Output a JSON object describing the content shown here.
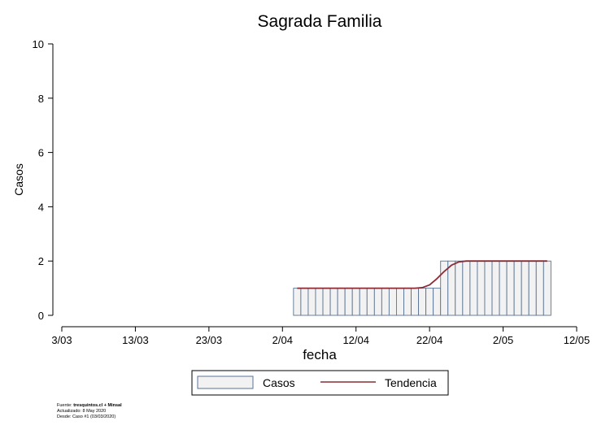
{
  "chart_data": {
    "type": "bar",
    "title": "Sagrada Familia",
    "xlabel": "fecha",
    "ylabel": "Casos",
    "ylim": [
      0,
      10
    ],
    "yticks": [
      0,
      2,
      4,
      6,
      8,
      10
    ],
    "xlim": [
      "2020-03-03",
      "2020-05-12"
    ],
    "xticks": [
      "3/03",
      "13/03",
      "23/03",
      "2/04",
      "12/04",
      "22/04",
      "2/05",
      "12/05"
    ],
    "grid": false,
    "legend_position": "bottom",
    "dates": [
      "2020-04-04",
      "2020-04-05",
      "2020-04-06",
      "2020-04-07",
      "2020-04-08",
      "2020-04-09",
      "2020-04-10",
      "2020-04-11",
      "2020-04-12",
      "2020-04-13",
      "2020-04-14",
      "2020-04-15",
      "2020-04-16",
      "2020-04-17",
      "2020-04-18",
      "2020-04-19",
      "2020-04-20",
      "2020-04-21",
      "2020-04-22",
      "2020-04-23",
      "2020-04-24",
      "2020-04-25",
      "2020-04-26",
      "2020-04-27",
      "2020-04-28",
      "2020-04-29",
      "2020-04-30",
      "2020-05-01",
      "2020-05-02",
      "2020-05-03",
      "2020-05-04",
      "2020-05-05",
      "2020-05-06",
      "2020-05-07",
      "2020-05-08"
    ],
    "series": [
      {
        "name": "Casos",
        "kind": "bar",
        "values": [
          1,
          1,
          1,
          1,
          1,
          1,
          1,
          1,
          1,
          1,
          1,
          1,
          1,
          1,
          1,
          1,
          1,
          1,
          1,
          1,
          2,
          2,
          2,
          2,
          2,
          2,
          2,
          2,
          2,
          2,
          2,
          2,
          2,
          2,
          2
        ]
      },
      {
        "name": "Tendencia",
        "kind": "line",
        "values": [
          1,
          1,
          1,
          1,
          1,
          1,
          1,
          1,
          1,
          1,
          1,
          1,
          1,
          1,
          1,
          1,
          1,
          1.02,
          1.12,
          1.35,
          1.62,
          1.85,
          1.97,
          2,
          2,
          2,
          2,
          2,
          2,
          2,
          2,
          2,
          2,
          2,
          2
        ]
      }
    ],
    "colors": {
      "bar_fill": "#f2f2f2",
      "bar_stroke": "#5a7394",
      "trend": "#8b2b35"
    }
  },
  "footer": {
    "source_label": "Fuente: ",
    "source_value": "tresquintos.cl + Minsal",
    "updated": "Actualizado: 8 May 2020",
    "since": "Desde: Caso #1  (03/03/2020)"
  }
}
